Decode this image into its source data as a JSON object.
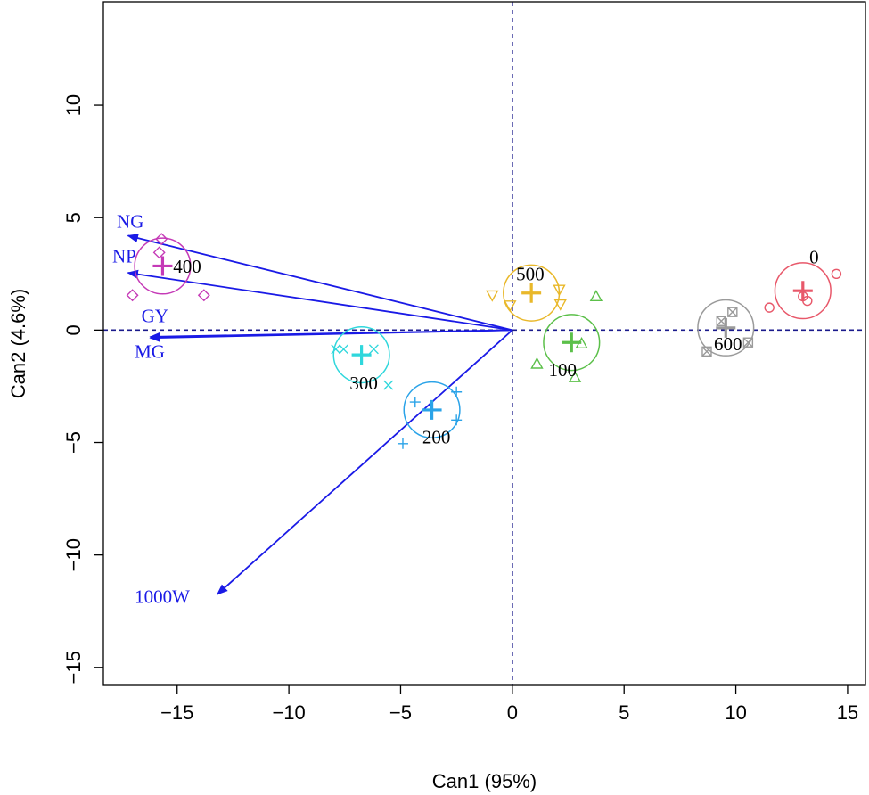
{
  "chart_data": {
    "type": "scatter",
    "subtype": "canonical discriminant biplot",
    "xlabel": "Can1 (95%)",
    "ylabel": "Can2 (4.6%)",
    "xlim": [
      -18.3,
      15.8
    ],
    "ylim": [
      -15.8,
      14.6
    ],
    "xticks": [
      -15,
      -10,
      -5,
      0,
      5,
      10,
      15
    ],
    "yticks": [
      -15,
      -10,
      -5,
      0,
      5,
      10
    ],
    "xtick_labels": [
      "−15",
      "−10",
      "−5",
      "0",
      "5",
      "10",
      "15"
    ],
    "ytick_labels": [
      "−15",
      "−10",
      "−5",
      "0",
      "5",
      "10"
    ],
    "reference_lines": {
      "x": 0,
      "y": 0,
      "style": "dashed",
      "color": "#1a1a8c"
    },
    "groups": [
      {
        "label": "0",
        "color": "#e8586a",
        "marker": "circle",
        "mean": [
          13.0,
          1.75
        ],
        "radius": 1.25,
        "points": [
          [
            11.5,
            1.0
          ],
          [
            13.0,
            1.5
          ],
          [
            13.2,
            1.3
          ],
          [
            14.5,
            2.5
          ]
        ]
      },
      {
        "label": "100",
        "color": "#5cc04a",
        "marker": "triangle-up",
        "mean": [
          2.65,
          -0.55
        ],
        "radius": 1.25,
        "points": [
          [
            3.75,
            1.5
          ],
          [
            3.1,
            -0.6
          ],
          [
            1.1,
            -1.5
          ],
          [
            2.8,
            -2.1
          ]
        ]
      },
      {
        "label": "200",
        "color": "#2aa3e8",
        "marker": "plus",
        "mean": [
          -3.6,
          -3.55
        ],
        "radius": 1.25,
        "points": [
          [
            -4.35,
            -3.2
          ],
          [
            -2.5,
            -2.75
          ],
          [
            -2.5,
            -4.0
          ],
          [
            -4.9,
            -5.05
          ]
        ]
      },
      {
        "label": "300",
        "color": "#2fd7dc",
        "marker": "cross",
        "mean": [
          -6.75,
          -1.1
        ],
        "radius": 1.25,
        "points": [
          [
            -7.9,
            -0.85
          ],
          [
            -7.55,
            -0.85
          ],
          [
            -6.2,
            -0.85
          ],
          [
            -5.55,
            -2.45
          ]
        ]
      },
      {
        "label": "400",
        "color": "#c53ab7",
        "marker": "diamond",
        "mean": [
          -15.65,
          2.85
        ],
        "radius": 1.25,
        "points": [
          [
            -15.7,
            4.05
          ],
          [
            -15.8,
            3.45
          ],
          [
            -17.0,
            1.55
          ],
          [
            -13.8,
            1.55
          ]
        ]
      },
      {
        "label": "500",
        "color": "#e9b82a",
        "marker": "triangle-down",
        "mean": [
          0.85,
          1.65
        ],
        "radius": 1.25,
        "points": [
          [
            -0.9,
            1.55
          ],
          [
            -0.1,
            1.1
          ],
          [
            2.1,
            1.8
          ],
          [
            2.15,
            1.15
          ]
        ]
      },
      {
        "label": "600",
        "color": "#9a9a9a",
        "marker": "square-x",
        "mean": [
          9.55,
          0.1
        ],
        "radius": 1.25,
        "points": [
          [
            9.35,
            0.4
          ],
          [
            9.85,
            0.8
          ],
          [
            10.55,
            -0.55
          ],
          [
            8.7,
            -0.95
          ]
        ]
      }
    ],
    "vectors": [
      {
        "label": "NG",
        "x": -17.2,
        "y": 4.2
      },
      {
        "label": "NP",
        "x": -17.2,
        "y": 2.55
      },
      {
        "label": "GY",
        "x": -16.2,
        "y": -0.3
      },
      {
        "label": "MG",
        "x": -16.2,
        "y": -0.35
      },
      {
        "label": "1000W",
        "x": -13.2,
        "y": -11.75
      }
    ],
    "vector_color": "#1a1ae6"
  }
}
